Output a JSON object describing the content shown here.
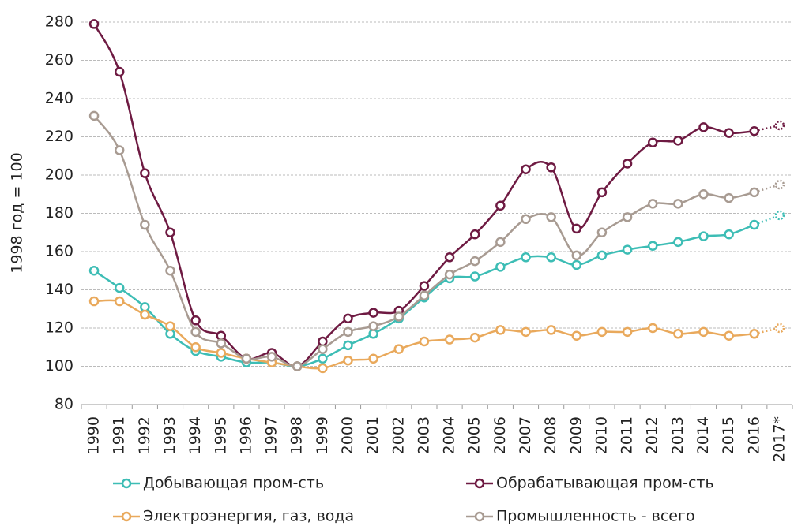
{
  "chart_data": {
    "type": "line",
    "y_label": "1998 год = 100",
    "categories": [
      "1990",
      "1991",
      "1992",
      "1993",
      "1994",
      "1995",
      "1996",
      "1997",
      "1998",
      "1999",
      "2000",
      "2001",
      "2002",
      "2003",
      "2004",
      "2005",
      "2006",
      "2007",
      "2008",
      "2009",
      "2010",
      "2011",
      "2012",
      "2013",
      "2014",
      "2015",
      "2016",
      "2017*"
    ],
    "series": [
      {
        "name": "Добывающая пром-сть",
        "color": "#3dbdb5",
        "values": [
          150,
          141,
          131,
          117,
          108,
          105,
          102,
          102,
          100,
          104,
          111,
          117,
          125,
          136,
          146,
          147,
          152,
          157,
          157,
          153,
          158,
          161,
          163,
          165,
          168,
          169,
          174,
          179
        ]
      },
      {
        "name": "Обрабатывающая пром-сть",
        "color": "#6e1a42",
        "values": [
          279,
          254,
          201,
          170,
          124,
          116,
          104,
          107,
          100,
          113,
          125,
          128,
          129,
          142,
          157,
          169,
          184,
          203,
          204,
          172,
          191,
          206,
          217,
          218,
          225,
          222,
          223,
          226
        ]
      },
      {
        "name": "Электроэнергия, газ, вода",
        "color": "#e9a95c",
        "values": [
          134,
          134,
          127,
          121,
          110,
          107,
          104,
          102,
          100,
          99,
          103,
          104,
          109,
          113,
          114,
          115,
          119,
          118,
          119,
          116,
          118,
          118,
          120,
          117,
          118,
          116,
          117,
          120
        ]
      },
      {
        "name": "Промышленность - всего",
        "color": "#a89b92",
        "values": [
          231,
          213,
          174,
          150,
          118,
          112,
          104,
          105,
          100,
          109,
          118,
          121,
          126,
          137,
          148,
          155,
          165,
          177,
          178,
          158,
          170,
          178,
          185,
          185,
          190,
          188,
          191,
          195
        ]
      }
    ],
    "ylim": [
      80,
      280
    ],
    "yticks": [
      80,
      100,
      120,
      140,
      160,
      180,
      200,
      220,
      240,
      260,
      280
    ],
    "grid": true
  }
}
